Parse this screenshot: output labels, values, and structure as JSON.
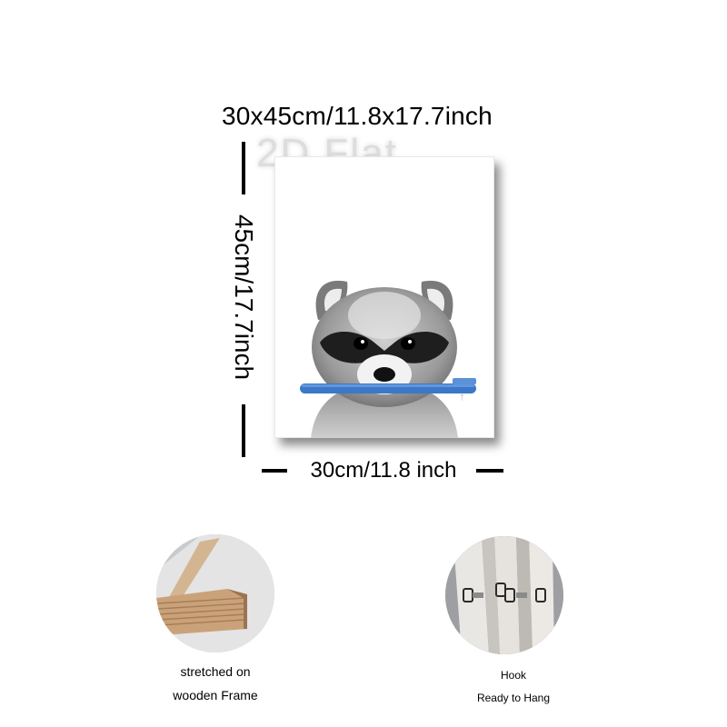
{
  "dimensions": {
    "overall": "30x45cm/11.8x17.7inch",
    "height": "45cm/17.7inch",
    "width": "30cm/11.8 inch"
  },
  "watermark": "2D Flat",
  "print": {
    "subject": "raccoon with blue toothbrush",
    "accent_color": "#3b78c8"
  },
  "features": [
    {
      "icon": "wooden-frame-photo",
      "line1": "stretched on",
      "line2": "wooden Frame"
    },
    {
      "icon": "hook-photo",
      "line1": "Hook",
      "line2": "Ready to Hang"
    }
  ]
}
